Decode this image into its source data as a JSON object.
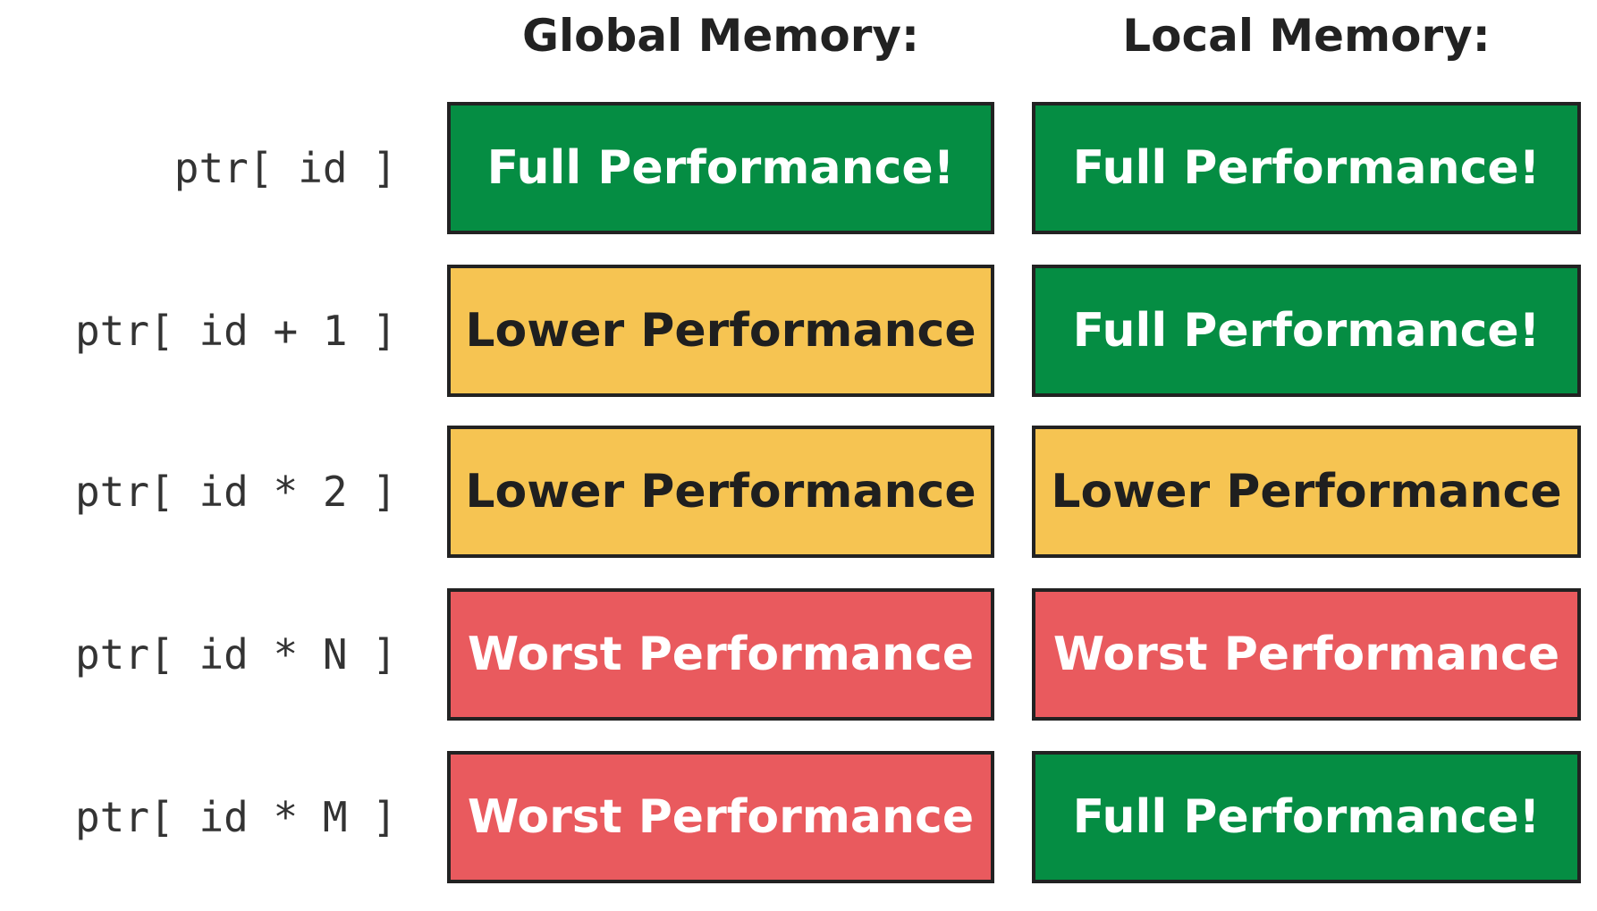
{
  "columns": [
    {
      "header": "Global Memory:"
    },
    {
      "header": "Local Memory:"
    }
  ],
  "rows": [
    {
      "label": "ptr[ id ]",
      "global": {
        "text": "Full Performance!",
        "level": "full"
      },
      "local": {
        "text": "Full Performance!",
        "level": "full"
      }
    },
    {
      "label": "ptr[ id + 1 ]",
      "global": {
        "text": "Lower Performance",
        "level": "lower"
      },
      "local": {
        "text": "Full Performance!",
        "level": "full"
      }
    },
    {
      "label": "ptr[ id * 2 ]",
      "global": {
        "text": "Lower Performance",
        "level": "lower"
      },
      "local": {
        "text": "Lower Performance",
        "level": "lower"
      }
    },
    {
      "label": "ptr[ id * N ]",
      "global": {
        "text": "Worst Performance",
        "level": "worst"
      },
      "local": {
        "text": "Worst Performance",
        "level": "worst"
      }
    },
    {
      "label": "ptr[ id * M ]",
      "global": {
        "text": "Worst Performance",
        "level": "worst"
      },
      "local": {
        "text": "Full Performance!",
        "level": "full"
      }
    }
  ],
  "colors": {
    "full": "#058d43",
    "lower": "#f6c452",
    "worst": "#e95a5e",
    "border": "#222222"
  }
}
